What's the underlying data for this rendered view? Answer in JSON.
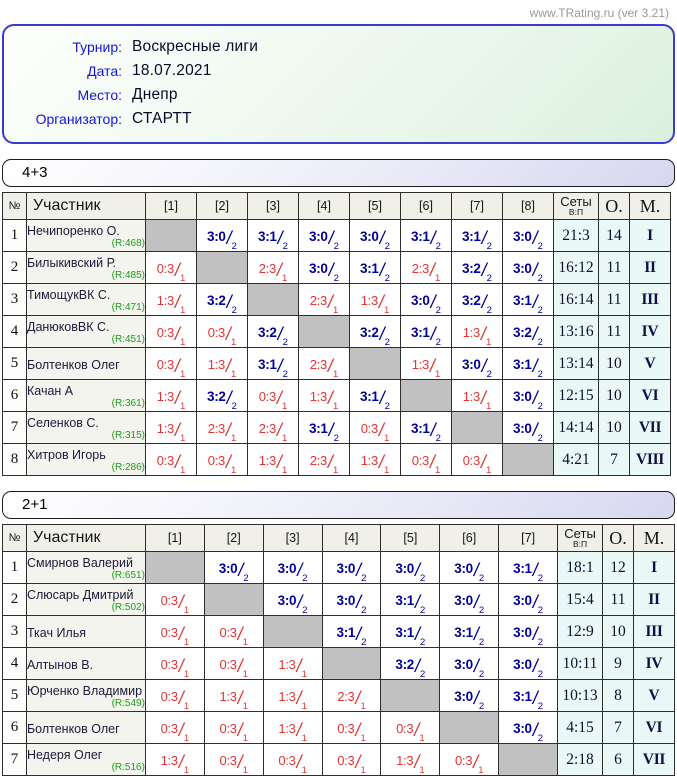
{
  "site": "www.TRating.ru (ver 3.21)",
  "colors": {
    "win_score": "#00009a",
    "loss_score": "#e43434",
    "rating_green": "#19a019",
    "info_border_blue": "#3a3ace",
    "diagonal_gray": "#c1c1c1",
    "sets_bg_cyan": "#ebf8f8"
  },
  "info": {
    "rows": [
      {
        "label": "Турнир:",
        "value": "Воскресные лиги"
      },
      {
        "label": "Дата:",
        "value": "18.07.2021"
      },
      {
        "label": "Место:",
        "value": "Днепр"
      },
      {
        "label": "Организатор:",
        "value": "СТАРТТ"
      }
    ]
  },
  "tables": [
    {
      "title": "4+3",
      "headers": {
        "num": "№",
        "participant": "Участник",
        "cols": [
          "[1]",
          "[2]",
          "[3]",
          "[4]",
          "[5]",
          "[6]",
          "[7]",
          "[8]"
        ],
        "sets": "Сеты",
        "sets_sub": "В:П",
        "points": "О.",
        "place": "М."
      },
      "rows": [
        {
          "num": "1",
          "name": "Нечипоренко О.",
          "rating": "(R:468)",
          "cells": [
            null,
            {
              "score": "3:0",
              "pts": "2",
              "win": true
            },
            {
              "score": "3:1",
              "pts": "2",
              "win": true
            },
            {
              "score": "3:0",
              "pts": "2",
              "win": true
            },
            {
              "score": "3:0",
              "pts": "2",
              "win": true
            },
            {
              "score": "3:1",
              "pts": "2",
              "win": true
            },
            {
              "score": "3:1",
              "pts": "2",
              "win": true
            },
            {
              "score": "3:0",
              "pts": "2",
              "win": true
            }
          ],
          "sets": "21:3",
          "points": "14",
          "place": "I"
        },
        {
          "num": "2",
          "name": "Билыкивский Р.",
          "rating": "(R:485)",
          "cells": [
            {
              "score": "0:3",
              "pts": "1",
              "win": false
            },
            null,
            {
              "score": "2:3",
              "pts": "1",
              "win": false
            },
            {
              "score": "3:0",
              "pts": "2",
              "win": true
            },
            {
              "score": "3:1",
              "pts": "2",
              "win": true
            },
            {
              "score": "2:3",
              "pts": "1",
              "win": false
            },
            {
              "score": "3:2",
              "pts": "2",
              "win": true
            },
            {
              "score": "3:0",
              "pts": "2",
              "win": true
            }
          ],
          "sets": "16:12",
          "points": "11",
          "place": "II"
        },
        {
          "num": "3",
          "name": "ТимощукВК С.",
          "rating": "(R:471)",
          "cells": [
            {
              "score": "1:3",
              "pts": "1",
              "win": false
            },
            {
              "score": "3:2",
              "pts": "2",
              "win": true
            },
            null,
            {
              "score": "2:3",
              "pts": "1",
              "win": false
            },
            {
              "score": "1:3",
              "pts": "1",
              "win": false
            },
            {
              "score": "3:0",
              "pts": "2",
              "win": true
            },
            {
              "score": "3:2",
              "pts": "2",
              "win": true
            },
            {
              "score": "3:1",
              "pts": "2",
              "win": true
            }
          ],
          "sets": "16:14",
          "points": "11",
          "place": "III"
        },
        {
          "num": "4",
          "name": "ДанюковВК С.",
          "rating": "(R:451)",
          "cells": [
            {
              "score": "0:3",
              "pts": "1",
              "win": false
            },
            {
              "score": "0:3",
              "pts": "1",
              "win": false
            },
            {
              "score": "3:2",
              "pts": "2",
              "win": true
            },
            null,
            {
              "score": "3:2",
              "pts": "2",
              "win": true
            },
            {
              "score": "3:1",
              "pts": "2",
              "win": true
            },
            {
              "score": "1:3",
              "pts": "1",
              "win": false
            },
            {
              "score": "3:2",
              "pts": "2",
              "win": true
            }
          ],
          "sets": "13:16",
          "points": "11",
          "place": "IV"
        },
        {
          "num": "5",
          "name": "Болтенков Олег",
          "rating": null,
          "cells": [
            {
              "score": "0:3",
              "pts": "1",
              "win": false
            },
            {
              "score": "1:3",
              "pts": "1",
              "win": false
            },
            {
              "score": "3:1",
              "pts": "2",
              "win": true
            },
            {
              "score": "2:3",
              "pts": "1",
              "win": false
            },
            null,
            {
              "score": "1:3",
              "pts": "1",
              "win": false
            },
            {
              "score": "3:0",
              "pts": "2",
              "win": true
            },
            {
              "score": "3:1",
              "pts": "2",
              "win": true
            }
          ],
          "sets": "13:14",
          "points": "10",
          "place": "V"
        },
        {
          "num": "6",
          "name": "Качан А",
          "rating": "(R:361)",
          "cells": [
            {
              "score": "1:3",
              "pts": "1",
              "win": false
            },
            {
              "score": "3:2",
              "pts": "2",
              "win": true
            },
            {
              "score": "0:3",
              "pts": "1",
              "win": false
            },
            {
              "score": "1:3",
              "pts": "1",
              "win": false
            },
            {
              "score": "3:1",
              "pts": "2",
              "win": true
            },
            null,
            {
              "score": "1:3",
              "pts": "1",
              "win": false
            },
            {
              "score": "3:0",
              "pts": "2",
              "win": true
            }
          ],
          "sets": "12:15",
          "points": "10",
          "place": "VI"
        },
        {
          "num": "7",
          "name": "Селенков С.",
          "rating": "(R:315)",
          "cells": [
            {
              "score": "1:3",
              "pts": "1",
              "win": false
            },
            {
              "score": "2:3",
              "pts": "1",
              "win": false
            },
            {
              "score": "2:3",
              "pts": "1",
              "win": false
            },
            {
              "score": "3:1",
              "pts": "2",
              "win": true
            },
            {
              "score": "0:3",
              "pts": "1",
              "win": false
            },
            {
              "score": "3:1",
              "pts": "2",
              "win": true
            },
            null,
            {
              "score": "3:0",
              "pts": "2",
              "win": true
            }
          ],
          "sets": "14:14",
          "points": "10",
          "place": "VII"
        },
        {
          "num": "8",
          "name": "Хитров Игорь",
          "rating": "(R:286)",
          "cells": [
            {
              "score": "0:3",
              "pts": "1",
              "win": false
            },
            {
              "score": "0:3",
              "pts": "1",
              "win": false
            },
            {
              "score": "1:3",
              "pts": "1",
              "win": false
            },
            {
              "score": "2:3",
              "pts": "1",
              "win": false
            },
            {
              "score": "1:3",
              "pts": "1",
              "win": false
            },
            {
              "score": "0:3",
              "pts": "1",
              "win": false
            },
            {
              "score": "0:3",
              "pts": "1",
              "win": false
            },
            null
          ],
          "sets": "4:21",
          "points": "7",
          "place": "VIII"
        }
      ]
    },
    {
      "title": "2+1",
      "headers": {
        "num": "№",
        "participant": "Участник",
        "cols": [
          "[1]",
          "[2]",
          "[3]",
          "[4]",
          "[5]",
          "[6]",
          "[7]"
        ],
        "sets": "Сеты",
        "sets_sub": "В:П",
        "points": "О.",
        "place": "М."
      },
      "rows": [
        {
          "num": "1",
          "name": "Смирнов Валерий",
          "rating": "(R:651)",
          "cells": [
            null,
            {
              "score": "3:0",
              "pts": "2",
              "win": true
            },
            {
              "score": "3:0",
              "pts": "2",
              "win": true
            },
            {
              "score": "3:0",
              "pts": "2",
              "win": true
            },
            {
              "score": "3:0",
              "pts": "2",
              "win": true
            },
            {
              "score": "3:0",
              "pts": "2",
              "win": true
            },
            {
              "score": "3:1",
              "pts": "2",
              "win": true
            }
          ],
          "sets": "18:1",
          "points": "12",
          "place": "I"
        },
        {
          "num": "2",
          "name": "Слюсарь Дмитрий",
          "rating": "(R:502)",
          "cells": [
            {
              "score": "0:3",
              "pts": "1",
              "win": false
            },
            null,
            {
              "score": "3:0",
              "pts": "2",
              "win": true
            },
            {
              "score": "3:0",
              "pts": "2",
              "win": true
            },
            {
              "score": "3:1",
              "pts": "2",
              "win": true
            },
            {
              "score": "3:0",
              "pts": "2",
              "win": true
            },
            {
              "score": "3:0",
              "pts": "2",
              "win": true
            }
          ],
          "sets": "15:4",
          "points": "11",
          "place": "II"
        },
        {
          "num": "3",
          "name": "Ткач Илья",
          "rating": null,
          "cells": [
            {
              "score": "0:3",
              "pts": "1",
              "win": false
            },
            {
              "score": "0:3",
              "pts": "1",
              "win": false
            },
            null,
            {
              "score": "3:1",
              "pts": "2",
              "win": true
            },
            {
              "score": "3:1",
              "pts": "2",
              "win": true
            },
            {
              "score": "3:1",
              "pts": "2",
              "win": true
            },
            {
              "score": "3:0",
              "pts": "2",
              "win": true
            }
          ],
          "sets": "12:9",
          "points": "10",
          "place": "III"
        },
        {
          "num": "4",
          "name": "Алтынов В.",
          "rating": null,
          "cells": [
            {
              "score": "0:3",
              "pts": "1",
              "win": false
            },
            {
              "score": "0:3",
              "pts": "1",
              "win": false
            },
            {
              "score": "1:3",
              "pts": "1",
              "win": false
            },
            null,
            {
              "score": "3:2",
              "pts": "2",
              "win": true
            },
            {
              "score": "3:0",
              "pts": "2",
              "win": true
            },
            {
              "score": "3:0",
              "pts": "2",
              "win": true
            }
          ],
          "sets": "10:11",
          "points": "9",
          "place": "IV"
        },
        {
          "num": "5",
          "name": "Юрченко Владимир",
          "rating": "(R:549)",
          "cells": [
            {
              "score": "0:3",
              "pts": "1",
              "win": false
            },
            {
              "score": "1:3",
              "pts": "1",
              "win": false
            },
            {
              "score": "1:3",
              "pts": "1",
              "win": false
            },
            {
              "score": "2:3",
              "pts": "1",
              "win": false
            },
            null,
            {
              "score": "3:0",
              "pts": "2",
              "win": true
            },
            {
              "score": "3:1",
              "pts": "2",
              "win": true
            }
          ],
          "sets": "10:13",
          "points": "8",
          "place": "V"
        },
        {
          "num": "6",
          "name": "Болтенков Олег",
          "rating": null,
          "cells": [
            {
              "score": "0:3",
              "pts": "1",
              "win": false
            },
            {
              "score": "0:3",
              "pts": "1",
              "win": false
            },
            {
              "score": "1:3",
              "pts": "1",
              "win": false
            },
            {
              "score": "0:3",
              "pts": "1",
              "win": false
            },
            {
              "score": "0:3",
              "pts": "1",
              "win": false
            },
            null,
            {
              "score": "3:0",
              "pts": "2",
              "win": true
            }
          ],
          "sets": "4:15",
          "points": "7",
          "place": "VI"
        },
        {
          "num": "7",
          "name": "Недеря Олег",
          "rating": "(R:516)",
          "cells": [
            {
              "score": "1:3",
              "pts": "1",
              "win": false
            },
            {
              "score": "0:3",
              "pts": "1",
              "win": false
            },
            {
              "score": "0:3",
              "pts": "1",
              "win": false
            },
            {
              "score": "0:3",
              "pts": "1",
              "win": false
            },
            {
              "score": "1:3",
              "pts": "1",
              "win": false
            },
            {
              "score": "0:3",
              "pts": "1",
              "win": false
            },
            null
          ],
          "sets": "2:18",
          "points": "6",
          "place": "VII"
        }
      ]
    }
  ]
}
